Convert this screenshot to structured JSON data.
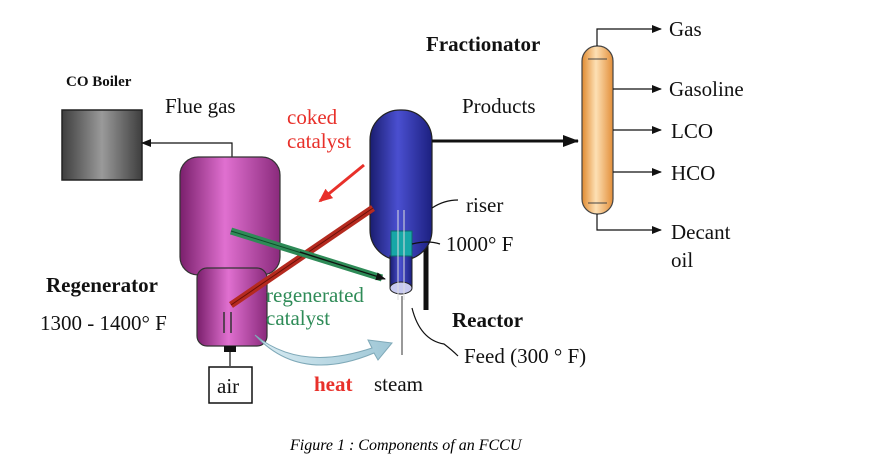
{
  "diagram": {
    "title_fractionator": "Fractionator",
    "co_boiler": "CO Boiler",
    "flue_gas": "Flue gas",
    "coked_catalyst": [
      "coked",
      "catalyst"
    ],
    "products": "Products",
    "riser": "riser",
    "temp_riser": "1000° F",
    "regenerated_catalyst": [
      "regenerated",
      "catalyst"
    ],
    "regenerator": "Regenerator",
    "regen_temp": "1300 - 1400° F",
    "reactor": "Reactor",
    "feed": "Feed (300 ° F)",
    "air": "air",
    "heat": "heat",
    "steam": "steam",
    "outputs": [
      "Gas",
      "Gasoline",
      "LCO",
      "HCO",
      "Decant",
      "oil"
    ],
    "caption": "Figure 1 : Components of an FCCU"
  },
  "colors": {
    "regenerator": "#c23bb0",
    "reactor": "#2b2fa0",
    "fractionator": "#f5c178",
    "boiler": "#6f6f6f",
    "red_label": "#e8302a",
    "green_label": "#2e8b57"
  }
}
